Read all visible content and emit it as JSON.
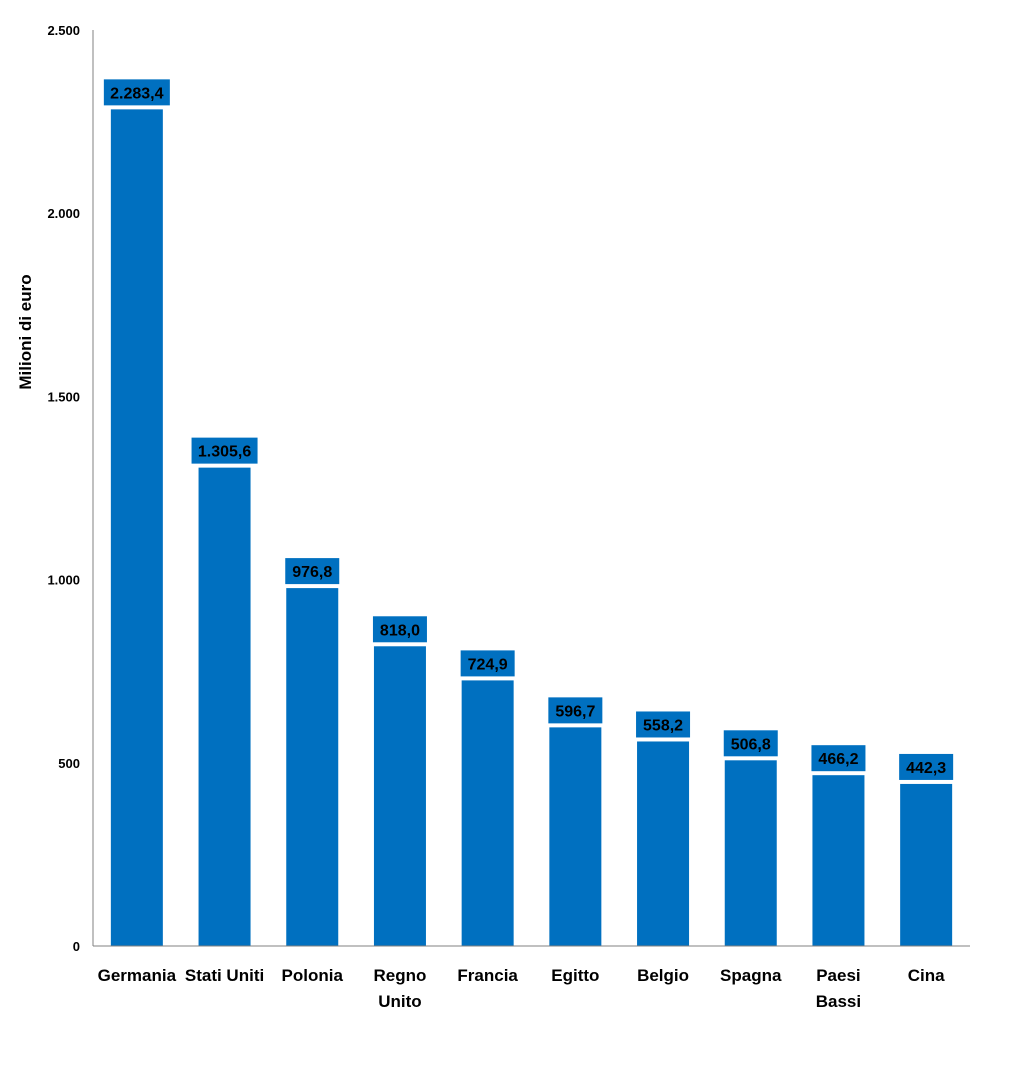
{
  "chart_data": {
    "type": "bar",
    "title": "",
    "xlabel": "",
    "ylabel": "Milioni di euro",
    "ylim": [
      0,
      2500
    ],
    "yticks": [
      0,
      500,
      1000,
      1500,
      2000,
      2500
    ],
    "ytick_labels": [
      "0",
      "500",
      "1.000",
      "1.500",
      "2.000",
      "2.500"
    ],
    "categories": [
      [
        "Germania"
      ],
      [
        "Stati Uniti"
      ],
      [
        "Polonia"
      ],
      [
        "Regno",
        "Unito"
      ],
      [
        "Francia"
      ],
      [
        "Egitto"
      ],
      [
        "Belgio"
      ],
      [
        "Spagna"
      ],
      [
        "Paesi",
        "Bassi"
      ],
      [
        "Cina"
      ]
    ],
    "values": [
      2283.4,
      1305.6,
      976.8,
      818.0,
      724.9,
      596.7,
      558.2,
      506.8,
      466.2,
      442.3
    ],
    "value_labels": [
      "2.283,4",
      "1.305,6",
      "976,8",
      "818,0",
      "724,9",
      "596,7",
      "558,2",
      "506,8",
      "466,2",
      "442,3"
    ],
    "grid": false,
    "legend": "none",
    "colors": {
      "bar": "#0070C0",
      "axis": "#808080"
    }
  }
}
